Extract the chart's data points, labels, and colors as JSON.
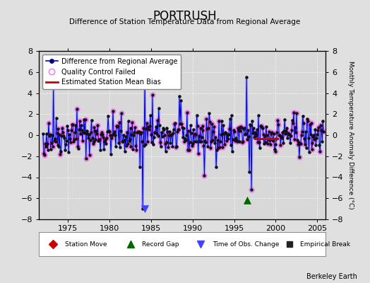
{
  "title": "PORTRUSH",
  "subtitle": "Difference of Station Temperature Data from Regional Average",
  "ylabel_right": "Monthly Temperature Anomaly Difference (°C)",
  "xlim": [
    1971.5,
    2006.0
  ],
  "ylim": [
    -8,
    8
  ],
  "background_color": "#e0e0e0",
  "plot_bg_color": "#d8d8d8",
  "grid_color": "#ffffff",
  "line_color_outer": "#aaaaff",
  "line_color_inner": "#0000cc",
  "dot_color": "#111111",
  "qc_color": "#ff66ff",
  "bias_color": "#cc0000",
  "bias_x_start": 1997.5,
  "bias_x_end": 2000.2,
  "bias_y": -0.35,
  "record_gap_x": 1996.6,
  "record_gap_y": -6.2,
  "time_of_obs_x": 1984.25,
  "time_of_obs_y": -7.0,
  "time_of_obs_color": "#4444ff",
  "record_gap_color": "#006600",
  "station_move_color": "#cc0000",
  "empirical_break_color": "#222222",
  "xticks": [
    1975,
    1980,
    1985,
    1990,
    1995,
    2000,
    2005
  ],
  "yticks": [
    -8,
    -6,
    -4,
    -2,
    0,
    2,
    4,
    6,
    8
  ],
  "start_year": 1971,
  "end_year": 2006,
  "seed": 42
}
